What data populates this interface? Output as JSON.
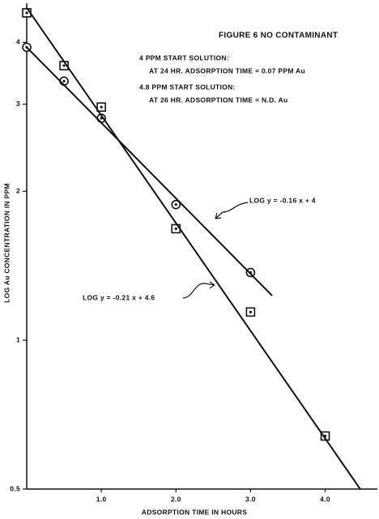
{
  "chart_data": {
    "type": "scatter",
    "title": "FIGURE 6 NO CONTAMINANT",
    "annotations": [
      "4 PPM START SOLUTION:",
      "AT 24 HR. ADSORPTION TIME = 0.07 PPM Au",
      "4.8 PPM START SOLUTION:",
      "AT 26 HR. ADSORPTION TIME = N.D. Au",
      "LOG y = -0.16 x + 4",
      "LOG y = -0.21 x + 4.6"
    ],
    "x_label": "ADSORPTION TIME IN HOURS",
    "y_label": "LOG Au CONCENTRATION IN PPM",
    "xlim": [
      0,
      4.7
    ],
    "ylim": [
      0.5,
      4.8
    ],
    "ylog": true,
    "xticks": [
      {
        "value": 1,
        "label": "1.0"
      },
      {
        "value": 2,
        "label": "2.0"
      },
      {
        "value": 3,
        "label": "3.0"
      },
      {
        "value": 4,
        "label": "4.0"
      }
    ],
    "yticks": [
      0.5,
      1,
      2,
      3,
      4
    ],
    "color": "#111111",
    "series": [
      {
        "marker": "square",
        "x": [
          0,
          0.5,
          1,
          2,
          3,
          4
        ],
        "values": [
          4.59,
          3.59,
          2.96,
          1.68,
          1.14,
          0.64
        ]
      },
      {
        "marker": "circle",
        "x": [
          0,
          0.5,
          1,
          2,
          3
        ],
        "values": [
          3.91,
          3.34,
          2.81,
          1.88,
          1.37
        ]
      },
      {
        "marker": "line",
        "x": [
          0,
          4.47
        ],
        "values": [
          4.7,
          0.5
        ]
      },
      {
        "marker": "line",
        "x": [
          0,
          3.29
        ],
        "values": [
          3.91,
          1.23
        ]
      }
    ]
  }
}
